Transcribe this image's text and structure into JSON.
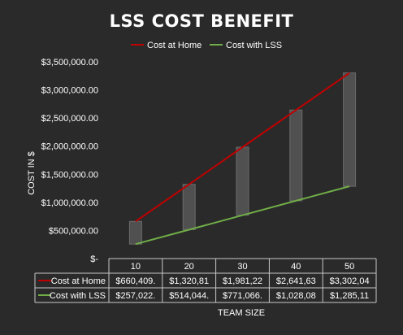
{
  "chart_data": {
    "type": "line",
    "title": "LSS COST BENEFIT",
    "xlabel": "TEAM SIZE",
    "ylabel": "COST IN $",
    "categories": [
      "10",
      "20",
      "30",
      "40",
      "50"
    ],
    "ylim": [
      0,
      3500000
    ],
    "y_ticks": [
      "$-",
      "$500,000.00",
      "$1,000,000.00",
      "$1,500,000.00",
      "$2,000,000.00",
      "$2,500,000.00",
      "$3,000,000.00",
      "$3,500,000.00"
    ],
    "series": [
      {
        "name": "Cost at Home",
        "color": "#c00000",
        "values": [
          660409,
          1320818,
          1981227,
          2641636,
          3302045
        ],
        "table_labels": [
          "$660,409.",
          "$1,320,81",
          "$1,981,22",
          "$2,641,63",
          "$3,302,04"
        ]
      },
      {
        "name": "Cost with LSS",
        "color": "#70ad47",
        "values": [
          257022,
          514044,
          771066,
          1028088,
          1285110
        ],
        "table_labels": [
          "$257,022.",
          "$514,044.",
          "$771,066.",
          "$1,028,08",
          "$1,285,11"
        ]
      }
    ],
    "high_low_bars": true,
    "bar_color": "#505050",
    "grid": false,
    "legend_position": "top"
  }
}
